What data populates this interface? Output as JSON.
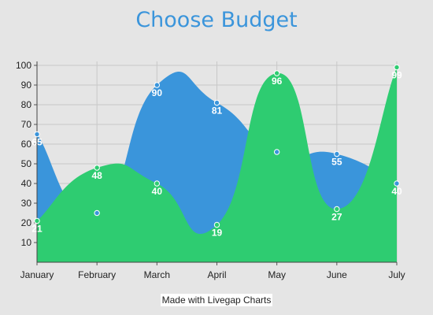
{
  "chart_data": {
    "type": "area",
    "title": "Choose Budget",
    "xlabel": "",
    "ylabel": "",
    "categories": [
      "January",
      "February",
      "March",
      "April",
      "May",
      "June",
      "July"
    ],
    "ylim": [
      0,
      100
    ],
    "yticks": [
      10,
      20,
      30,
      40,
      50,
      60,
      70,
      80,
      90,
      100
    ],
    "grid": true,
    "series": [
      {
        "values": [
          65,
          25,
          90,
          81,
          56,
          55,
          40
        ],
        "color": "#3a95db",
        "labels": [
          "65",
          "",
          "90",
          "81",
          "",
          "55",
          "40"
        ]
      },
      {
        "values": [
          21,
          48,
          40,
          19,
          96,
          27,
          99
        ],
        "color": "#2ecc71",
        "labels": [
          "21",
          "48",
          "40",
          "19",
          "96",
          "27",
          "99"
        ]
      }
    ]
  },
  "credit": "Made with Livegap Charts"
}
